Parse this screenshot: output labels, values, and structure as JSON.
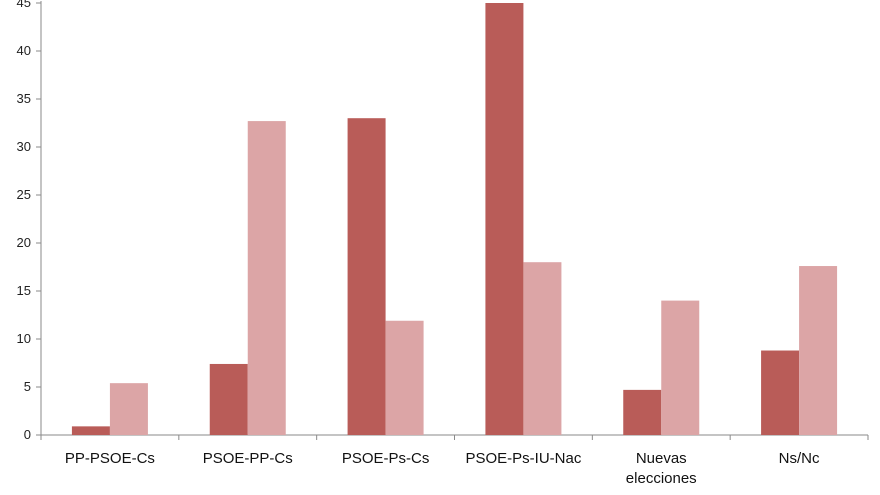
{
  "chart_data": {
    "type": "bar",
    "title": "",
    "xlabel": "",
    "ylabel": "",
    "ylim": [
      0,
      45
    ],
    "yticks": [
      0,
      5,
      10,
      15,
      20,
      25,
      30,
      35,
      40,
      45
    ],
    "grid": false,
    "legend": "none",
    "categories": [
      [
        "PP-PSOE-Cs"
      ],
      [
        "PSOE-PP-Cs"
      ],
      [
        "PSOE-Ps-Cs"
      ],
      [
        "PSOE-Ps-IU-Nac"
      ],
      [
        "Nuevas",
        "elecciones"
      ],
      [
        "Ns/Nc"
      ]
    ],
    "series": [
      {
        "values": [
          0.9,
          7.4,
          33.0,
          45.0,
          4.7,
          8.8
        ]
      },
      {
        "values": [
          5.4,
          32.7,
          11.9,
          18.0,
          14.0,
          17.6
        ]
      }
    ],
    "colors": [
      "#b95c58",
      "#dca5a6"
    ]
  }
}
